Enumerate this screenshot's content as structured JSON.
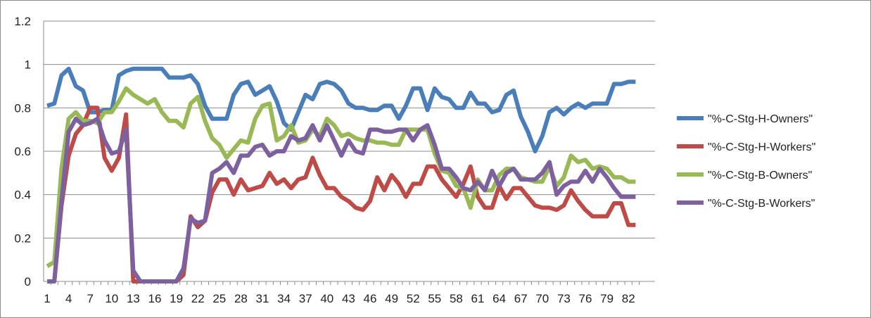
{
  "chart_data": {
    "type": "line",
    "title": "",
    "xlabel": "",
    "ylabel": "",
    "ylim": [
      0,
      1.2
    ],
    "yticks": [
      "0",
      "0.2",
      "0.4",
      "0.6",
      "0.8",
      "1",
      "1.2"
    ],
    "xlim": [
      1,
      83
    ],
    "xticks": [
      "1",
      "4",
      "7",
      "10",
      "13",
      "16",
      "19",
      "22",
      "25",
      "28",
      "31",
      "34",
      "37",
      "40",
      "43",
      "46",
      "49",
      "52",
      "55",
      "58",
      "61",
      "64",
      "67",
      "70",
      "73",
      "76",
      "79",
      "82"
    ],
    "grid": "horizontal",
    "legend_position": "right",
    "series": [
      {
        "name": "\"%-C-Stg-H-Owners\"",
        "color": "#4a7ebb",
        "values": [
          0.81,
          0.82,
          0.95,
          0.98,
          0.9,
          0.88,
          0.78,
          0.78,
          0.79,
          0.79,
          0.95,
          0.97,
          0.98,
          0.98,
          0.98,
          0.98,
          0.98,
          0.94,
          0.94,
          0.94,
          0.95,
          0.91,
          0.81,
          0.75,
          0.75,
          0.75,
          0.86,
          0.91,
          0.92,
          0.86,
          0.88,
          0.9,
          0.83,
          0.73,
          0.7,
          0.78,
          0.86,
          0.84,
          0.91,
          0.92,
          0.91,
          0.88,
          0.82,
          0.8,
          0.8,
          0.79,
          0.79,
          0.81,
          0.81,
          0.75,
          0.81,
          0.89,
          0.89,
          0.79,
          0.89,
          0.85,
          0.84,
          0.8,
          0.8,
          0.87,
          0.82,
          0.82,
          0.78,
          0.79,
          0.86,
          0.88,
          0.76,
          0.69,
          0.6,
          0.67,
          0.78,
          0.8,
          0.77,
          0.8,
          0.82,
          0.8,
          0.82,
          0.82,
          0.82,
          0.91,
          0.91,
          0.92,
          0.92
        ]
      },
      {
        "name": "\"%-C-Stg-H-Workers\"",
        "color": "#be4b48",
        "values": [
          0.0,
          0.0,
          0.35,
          0.58,
          0.68,
          0.72,
          0.8,
          0.8,
          0.57,
          0.51,
          0.57,
          0.77,
          0.0,
          0.0,
          0.0,
          0.0,
          0.0,
          0.0,
          0.0,
          0.03,
          0.3,
          0.25,
          0.28,
          0.41,
          0.47,
          0.47,
          0.4,
          0.47,
          0.42,
          0.43,
          0.44,
          0.5,
          0.45,
          0.47,
          0.43,
          0.47,
          0.48,
          0.57,
          0.49,
          0.43,
          0.43,
          0.39,
          0.37,
          0.34,
          0.33,
          0.37,
          0.48,
          0.42,
          0.49,
          0.45,
          0.39,
          0.45,
          0.45,
          0.53,
          0.53,
          0.47,
          0.43,
          0.39,
          0.45,
          0.53,
          0.39,
          0.34,
          0.34,
          0.44,
          0.38,
          0.43,
          0.43,
          0.39,
          0.35,
          0.34,
          0.34,
          0.33,
          0.35,
          0.42,
          0.37,
          0.33,
          0.3,
          0.3,
          0.3,
          0.36,
          0.36,
          0.26,
          0.26
        ]
      },
      {
        "name": "\"%-C-Stg-B-Owners\"",
        "color": "#98b954",
        "values": [
          0.07,
          0.09,
          0.52,
          0.75,
          0.78,
          0.74,
          0.74,
          0.73,
          0.78,
          0.78,
          0.83,
          0.89,
          0.86,
          0.84,
          0.82,
          0.84,
          0.78,
          0.74,
          0.74,
          0.71,
          0.82,
          0.85,
          0.74,
          0.66,
          0.63,
          0.57,
          0.61,
          0.65,
          0.64,
          0.75,
          0.81,
          0.82,
          0.65,
          0.67,
          0.72,
          0.64,
          0.65,
          0.7,
          0.67,
          0.75,
          0.72,
          0.67,
          0.68,
          0.66,
          0.65,
          0.65,
          0.64,
          0.64,
          0.63,
          0.63,
          0.7,
          0.7,
          0.7,
          0.7,
          0.59,
          0.51,
          0.5,
          0.44,
          0.43,
          0.34,
          0.47,
          0.42,
          0.42,
          0.49,
          0.52,
          0.52,
          0.48,
          0.47,
          0.46,
          0.46,
          0.53,
          0.44,
          0.48,
          0.58,
          0.55,
          0.56,
          0.52,
          0.53,
          0.52,
          0.48,
          0.48,
          0.46,
          0.46
        ]
      },
      {
        "name": "\"%-C-Stg-B-Workers\"",
        "color": "#7d60a0",
        "values": [
          0.0,
          0.0,
          0.37,
          0.69,
          0.75,
          0.72,
          0.73,
          0.75,
          0.65,
          0.59,
          0.6,
          0.7,
          0.05,
          0.0,
          0.0,
          0.0,
          0.0,
          0.0,
          0.0,
          0.06,
          0.29,
          0.27,
          0.28,
          0.5,
          0.52,
          0.55,
          0.5,
          0.58,
          0.58,
          0.62,
          0.63,
          0.58,
          0.6,
          0.6,
          0.67,
          0.65,
          0.66,
          0.72,
          0.65,
          0.72,
          0.65,
          0.58,
          0.65,
          0.6,
          0.59,
          0.7,
          0.7,
          0.69,
          0.69,
          0.7,
          0.7,
          0.65,
          0.7,
          0.72,
          0.63,
          0.52,
          0.52,
          0.48,
          0.43,
          0.42,
          0.46,
          0.42,
          0.51,
          0.44,
          0.5,
          0.52,
          0.47,
          0.47,
          0.47,
          0.5,
          0.55,
          0.4,
          0.44,
          0.46,
          0.46,
          0.51,
          0.46,
          0.52,
          0.48,
          0.43,
          0.39,
          0.39,
          0.39
        ]
      }
    ]
  }
}
